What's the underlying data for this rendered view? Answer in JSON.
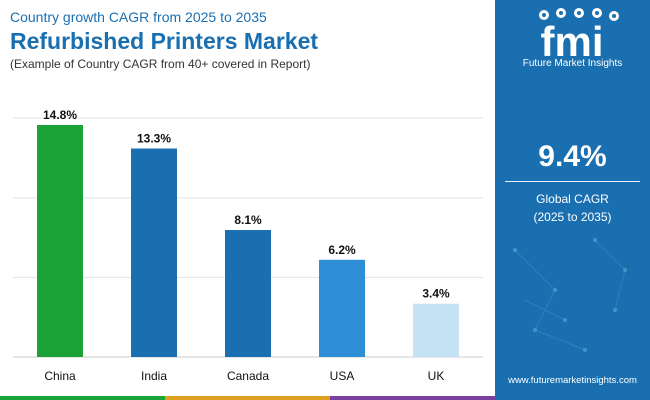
{
  "header": {
    "kicker": "Country growth CAGR from 2025 to 2035",
    "title": "Refurbished Printers Market",
    "subtitle": "(Example of Country CAGR from 40+ covered in Report)"
  },
  "sidebar": {
    "logo_text": "fmi",
    "brand": "Future Market Insights",
    "cagr_value": "9.4%",
    "cagr_label_1": "Global CAGR",
    "cagr_label_2": "(2025 to 2035)",
    "url": "www.futuremarketinsights.com",
    "background": "#1a6fb0"
  },
  "chart_data": {
    "type": "bar",
    "categories": [
      "China",
      "India",
      "Canada",
      "USA",
      "UK"
    ],
    "values": [
      14.8,
      13.3,
      8.1,
      6.2,
      3.4
    ],
    "data_labels": [
      "14.8%",
      "13.3%",
      "8.1%",
      "6.2%",
      "3.4%"
    ],
    "bar_colors": [
      "#1aa437",
      "#1a6fb0",
      "#1a6fb0",
      "#2e8fd6",
      "#c5e2f5"
    ],
    "ylim": [
      0,
      15
    ],
    "grid": true,
    "title": "",
    "xlabel": "",
    "ylabel": ""
  },
  "footer_colors": [
    "#1aa437",
    "#e0a020",
    "#7a3fa0",
    "#1a6fb0"
  ]
}
